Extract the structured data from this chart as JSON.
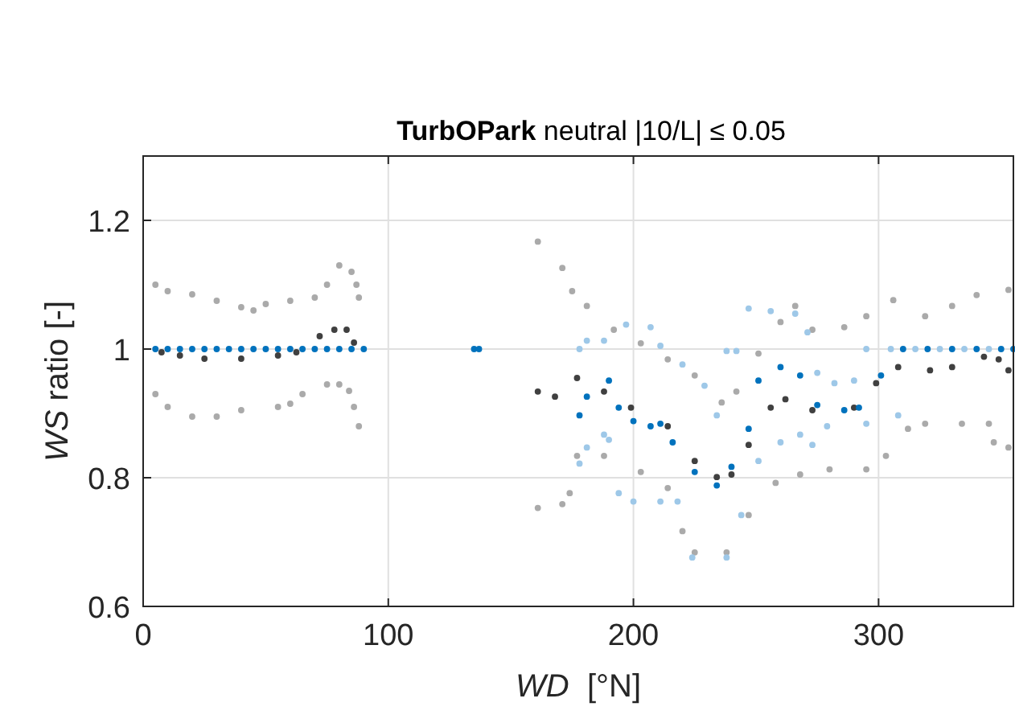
{
  "chart_data": {
    "type": "scatter",
    "title": "TurbOPark neutral |10/L| ≤ 0.05",
    "xlabel": "WD  [°N]",
    "ylabel": "WS ratio [-]",
    "xlim": [
      0,
      355
    ],
    "ylim": [
      0.6,
      1.3
    ],
    "xticks": [
      0,
      100,
      200,
      300
    ],
    "yticks": [
      0.6,
      0.8,
      1,
      1.2
    ],
    "grid": true,
    "marker": "circle",
    "series": [
      {
        "color": "#aaaaaa",
        "x": [
          5,
          10,
          20,
          30,
          40,
          45,
          50,
          60,
          70,
          75,
          80,
          85,
          87,
          88,
          161,
          171,
          175,
          181,
          192,
          203,
          214,
          225,
          236,
          242,
          251,
          260,
          266,
          273,
          286,
          295,
          306,
          319,
          330,
          340,
          353
        ],
        "values": [
          1.1,
          1.09,
          1.085,
          1.075,
          1.065,
          1.06,
          1.07,
          1.075,
          1.08,
          1.1,
          1.13,
          1.12,
          1.1,
          1.08,
          1.167,
          1.126,
          1.09,
          1.067,
          1.03,
          1.009,
          0.984,
          0.959,
          0.917,
          0.934,
          0.993,
          1.042,
          1.067,
          1.03,
          1.034,
          1.051,
          1.076,
          1.051,
          1.067,
          1.084,
          1.092
        ]
      },
      {
        "color": "#aaaaaa",
        "x": [
          5,
          10,
          20,
          30,
          40,
          55,
          60,
          65,
          75,
          80,
          84,
          86,
          88,
          161,
          171,
          174,
          177,
          188,
          203,
          214,
          220,
          225,
          238,
          247,
          258,
          268,
          280,
          295,
          303,
          312,
          319,
          334,
          345,
          347,
          353
        ],
        "values": [
          0.93,
          0.91,
          0.895,
          0.895,
          0.905,
          0.91,
          0.915,
          0.93,
          0.945,
          0.945,
          0.935,
          0.91,
          0.88,
          0.753,
          0.759,
          0.776,
          0.834,
          0.834,
          0.809,
          0.784,
          0.717,
          0.684,
          0.684,
          0.742,
          0.792,
          0.805,
          0.813,
          0.813,
          0.834,
          0.876,
          0.884,
          0.884,
          0.884,
          0.855,
          0.847
        ]
      },
      {
        "color": "#9ec8e8",
        "x": [
          178,
          181,
          188,
          197,
          207,
          211,
          220,
          229,
          234,
          238,
          242,
          247,
          256,
          266,
          271,
          275,
          282,
          290,
          295,
          305,
          315,
          325,
          335,
          345
        ],
        "values": [
          1.0,
          1.013,
          1.013,
          1.038,
          1.034,
          1.005,
          0.976,
          0.943,
          0.897,
          0.997,
          0.997,
          1.063,
          1.059,
          1.055,
          1.026,
          0.963,
          0.947,
          0.951,
          1.0,
          1.0,
          1.0,
          1.0,
          1.0,
          1.0
        ]
      },
      {
        "color": "#9ec8e8",
        "x": [
          178,
          181,
          188,
          190,
          194,
          200,
          211,
          218,
          224,
          238,
          244,
          251,
          260,
          268,
          273,
          279,
          295,
          308
        ],
        "values": [
          0.822,
          0.847,
          0.867,
          0.859,
          0.776,
          0.763,
          0.763,
          0.763,
          0.676,
          0.676,
          0.742,
          0.826,
          0.855,
          0.867,
          0.851,
          0.88,
          0.884,
          0.897
        ]
      },
      {
        "color": "#404040",
        "x": [
          7.5,
          15,
          25,
          40,
          55,
          62.5,
          72,
          78,
          83,
          86,
          161,
          168,
          177,
          188,
          199,
          214,
          225,
          234,
          240,
          247,
          256,
          262,
          273,
          290,
          299,
          308,
          321,
          330,
          343,
          349,
          353
        ],
        "values": [
          0.995,
          0.99,
          0.985,
          0.985,
          0.99,
          0.995,
          1.02,
          1.03,
          1.03,
          1.01,
          0.934,
          0.926,
          0.955,
          0.934,
          0.909,
          0.88,
          0.826,
          0.801,
          0.805,
          0.851,
          0.909,
          0.922,
          0.905,
          0.909,
          0.947,
          0.972,
          0.967,
          0.972,
          0.988,
          0.984,
          0.967
        ]
      },
      {
        "color": "#0072bd",
        "x": [
          5,
          10,
          15,
          20,
          25,
          30,
          35,
          40,
          45,
          50,
          55,
          60,
          65,
          70,
          75,
          80,
          85,
          90,
          135,
          137,
          178,
          181,
          190,
          194,
          200,
          207,
          211,
          216,
          225,
          234,
          240,
          247,
          251,
          260,
          268,
          275,
          286,
          292,
          301,
          310,
          320,
          330,
          340,
          350,
          355
        ],
        "values": [
          1,
          1,
          1,
          1,
          1,
          1,
          1,
          1,
          1,
          1,
          1,
          1,
          1,
          1,
          1,
          1,
          1,
          1,
          1,
          1,
          0.897,
          0.926,
          0.951,
          0.909,
          0.888,
          0.88,
          0.884,
          0.855,
          0.809,
          0.788,
          0.817,
          0.876,
          0.951,
          0.972,
          0.959,
          0.913,
          0.905,
          0.909,
          0.959,
          1.0,
          1.0,
          1.0,
          1.0,
          1.0,
          1.0
        ]
      }
    ]
  }
}
